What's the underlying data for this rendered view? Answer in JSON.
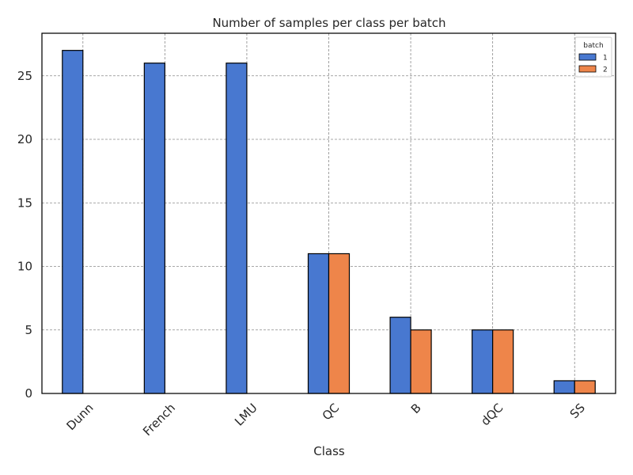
{
  "chart_data": {
    "type": "bar",
    "title": "Number of samples per class per batch",
    "xlabel": "Class",
    "ylabel": "",
    "categories": [
      "Dunn",
      "French",
      "LMU",
      "QC",
      "B",
      "dQC",
      "SS"
    ],
    "series": [
      {
        "name": "1",
        "values": [
          27,
          26,
          26,
          11,
          6,
          5,
          1
        ],
        "color": "#4878d0"
      },
      {
        "name": "2",
        "values": [
          0,
          0,
          0,
          11,
          5,
          5,
          1
        ],
        "color": "#ee854a"
      }
    ],
    "ylim": [
      0,
      28.35
    ],
    "yticks": [
      0,
      5,
      10,
      15,
      20,
      25
    ],
    "grid": true,
    "legend": {
      "title": "batch",
      "placement": "top-right"
    }
  }
}
